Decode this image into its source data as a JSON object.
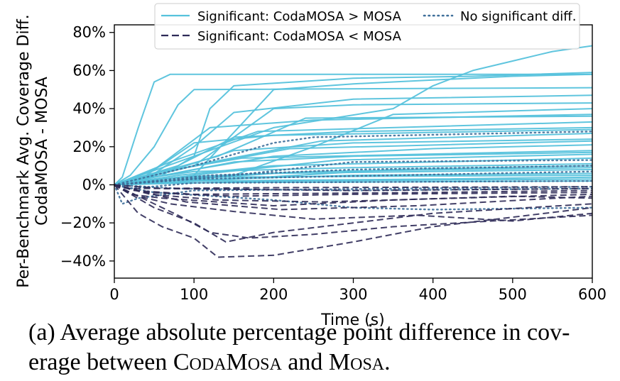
{
  "chart_data": {
    "type": "line",
    "xlabel": "Time (s)",
    "ylabel_line1": "Per-Benchmark Avg. Coverage Diff.",
    "ylabel_line2": "CodaMOSA - MOSA",
    "xlim": [
      0,
      600
    ],
    "ylim": [
      -49,
      84
    ],
    "xticks": [
      0,
      100,
      200,
      300,
      400,
      500,
      600
    ],
    "xtick_labels": [
      "0",
      "100",
      "200",
      "300",
      "400",
      "500",
      "600"
    ],
    "yticks": [
      -40,
      -20,
      0,
      20,
      40,
      60,
      80
    ],
    "ytick_labels": [
      "−40%",
      "−20%",
      "0%",
      "20%",
      "40%",
      "60%",
      "80%"
    ],
    "grid": false,
    "legend_position": "top-right",
    "legend": [
      {
        "label": "Significant: CodaMOSA > MOSA",
        "style": "solid",
        "color": "#56c2dc"
      },
      {
        "label": "No significant diff.",
        "style": "dotted",
        "color": "#3e6f9a"
      },
      {
        "label": "Significant: CodaMOSA < MOSA",
        "style": "dashed",
        "color": "#2e2a57"
      }
    ],
    "series": [
      {
        "group": "greater",
        "points": [
          [
            0,
            0
          ],
          [
            10,
            4
          ],
          [
            30,
            30
          ],
          [
            50,
            54
          ],
          [
            70,
            58
          ],
          [
            600,
            58
          ]
        ]
      },
      {
        "group": "greater",
        "points": [
          [
            0,
            0
          ],
          [
            20,
            5
          ],
          [
            50,
            20
          ],
          [
            80,
            42
          ],
          [
            100,
            50
          ],
          [
            600,
            51
          ]
        ]
      },
      {
        "group": "greater",
        "points": [
          [
            0,
            0
          ],
          [
            60,
            5
          ],
          [
            100,
            15
          ],
          [
            120,
            40
          ],
          [
            150,
            52
          ],
          [
            300,
            56
          ],
          [
            450,
            57
          ],
          [
            600,
            59
          ]
        ]
      },
      {
        "group": "greater",
        "points": [
          [
            0,
            0
          ],
          [
            40,
            3
          ],
          [
            100,
            20
          ],
          [
            150,
            38
          ],
          [
            300,
            45
          ],
          [
            600,
            47
          ]
        ]
      },
      {
        "group": "greater",
        "points": [
          [
            0,
            0
          ],
          [
            100,
            5
          ],
          [
            200,
            50
          ],
          [
            300,
            53
          ],
          [
            400,
            55
          ],
          [
            500,
            57
          ],
          [
            600,
            58
          ]
        ]
      },
      {
        "group": "greater",
        "points": [
          [
            0,
            0
          ],
          [
            100,
            10
          ],
          [
            200,
            40
          ],
          [
            300,
            42
          ],
          [
            600,
            43
          ]
        ]
      },
      {
        "group": "greater",
        "points": [
          [
            0,
            0
          ],
          [
            150,
            5
          ],
          [
            250,
            20
          ],
          [
            350,
            37
          ],
          [
            600,
            40
          ]
        ]
      },
      {
        "group": "greater",
        "points": [
          [
            0,
            0
          ],
          [
            50,
            8
          ],
          [
            120,
            30
          ],
          [
            250,
            34
          ],
          [
            600,
            37
          ]
        ]
      },
      {
        "group": "greater",
        "points": [
          [
            0,
            0
          ],
          [
            80,
            10
          ],
          [
            150,
            25
          ],
          [
            300,
            28
          ],
          [
            600,
            30
          ]
        ]
      },
      {
        "group": "greater",
        "points": [
          [
            0,
            0
          ],
          [
            40,
            5
          ],
          [
            100,
            22
          ],
          [
            200,
            26
          ],
          [
            600,
            29
          ]
        ]
      },
      {
        "group": "greater",
        "points": [
          [
            0,
            0
          ],
          [
            60,
            6
          ],
          [
            150,
            18
          ],
          [
            300,
            22
          ],
          [
            600,
            24
          ]
        ]
      },
      {
        "group": "greater",
        "points": [
          [
            0,
            0
          ],
          [
            100,
            8
          ],
          [
            200,
            15
          ],
          [
            400,
            19
          ],
          [
            600,
            21
          ]
        ]
      },
      {
        "group": "greater",
        "points": [
          [
            0,
            0
          ],
          [
            50,
            4
          ],
          [
            150,
            12
          ],
          [
            300,
            15
          ],
          [
            600,
            17
          ]
        ]
      },
      {
        "group": "greater",
        "points": [
          [
            0,
            0
          ],
          [
            80,
            5
          ],
          [
            200,
            10
          ],
          [
            400,
            12
          ],
          [
            600,
            14
          ]
        ]
      },
      {
        "group": "greater",
        "points": [
          [
            0,
            0
          ],
          [
            30,
            3
          ],
          [
            100,
            7
          ],
          [
            300,
            9
          ],
          [
            600,
            11
          ]
        ]
      },
      {
        "group": "greater",
        "points": [
          [
            0,
            0
          ],
          [
            60,
            2
          ],
          [
            200,
            6
          ],
          [
            600,
            8
          ]
        ]
      },
      {
        "group": "greater",
        "points": [
          [
            0,
            0
          ],
          [
            50,
            2
          ],
          [
            300,
            5
          ],
          [
            600,
            6
          ]
        ]
      },
      {
        "group": "greater",
        "points": [
          [
            0,
            0
          ],
          [
            100,
            2
          ],
          [
            400,
            3
          ],
          [
            600,
            4
          ]
        ]
      },
      {
        "group": "greater",
        "points": [
          [
            0,
            0
          ],
          [
            200,
            2
          ],
          [
            600,
            3
          ]
        ]
      },
      {
        "group": "greater",
        "points": [
          [
            0,
            0
          ],
          [
            40,
            1
          ],
          [
            600,
            2
          ]
        ]
      },
      {
        "group": "greater",
        "points": [
          [
            0,
            0
          ],
          [
            150,
            3
          ],
          [
            350,
            8
          ],
          [
            600,
            10
          ]
        ]
      },
      {
        "group": "greater",
        "points": [
          [
            0,
            0
          ],
          [
            120,
            6
          ],
          [
            280,
            13
          ],
          [
            600,
            16
          ]
        ]
      },
      {
        "group": "greater",
        "points": [
          [
            0,
            0
          ],
          [
            90,
            9
          ],
          [
            220,
            19
          ],
          [
            600,
            23
          ]
        ]
      },
      {
        "group": "greater",
        "points": [
          [
            0,
            0
          ],
          [
            70,
            12
          ],
          [
            180,
            28
          ],
          [
            600,
            33
          ]
        ]
      },
      {
        "group": "greater",
        "points": [
          [
            0,
            0
          ],
          [
            130,
            15
          ],
          [
            240,
            35
          ],
          [
            600,
            36
          ]
        ]
      },
      {
        "group": "greater",
        "points": [
          [
            0,
            0
          ],
          [
            200,
            30
          ],
          [
            350,
            40
          ],
          [
            400,
            52
          ],
          [
            450,
            60
          ],
          [
            500,
            65
          ],
          [
            550,
            70
          ],
          [
            600,
            73
          ]
        ]
      },
      {
        "group": "greater",
        "points": [
          [
            0,
            0
          ],
          [
            25,
            2
          ],
          [
            100,
            4
          ],
          [
            600,
            5
          ]
        ]
      },
      {
        "group": "greater",
        "points": [
          [
            0,
            0
          ],
          [
            80,
            4
          ],
          [
            250,
            7
          ],
          [
            600,
            9
          ]
        ]
      },
      {
        "group": "greater",
        "points": [
          [
            0,
            0
          ],
          [
            60,
            7
          ],
          [
            160,
            14
          ],
          [
            600,
            18
          ]
        ]
      },
      {
        "group": "greater",
        "points": [
          [
            0,
            0
          ],
          [
            110,
            11
          ],
          [
            260,
            23
          ],
          [
            600,
            27
          ]
        ]
      },
      {
        "group": "none",
        "points": [
          [
            0,
            0
          ],
          [
            100,
            10
          ],
          [
            200,
            22
          ],
          [
            250,
            25
          ],
          [
            600,
            28
          ]
        ]
      },
      {
        "group": "none",
        "points": [
          [
            0,
            0
          ],
          [
            150,
            5
          ],
          [
            300,
            12
          ],
          [
            600,
            13
          ]
        ]
      },
      {
        "group": "none",
        "points": [
          [
            0,
            0
          ],
          [
            100,
            3
          ],
          [
            600,
            7
          ]
        ]
      },
      {
        "group": "none",
        "points": [
          [
            0,
            0
          ],
          [
            20,
            -2
          ],
          [
            100,
            1
          ],
          [
            600,
            2
          ]
        ]
      },
      {
        "group": "none",
        "points": [
          [
            0,
            0
          ],
          [
            50,
            -4
          ],
          [
            200,
            -8
          ],
          [
            300,
            -12
          ],
          [
            400,
            -13
          ],
          [
            600,
            -12
          ]
        ]
      },
      {
        "group": "none",
        "points": [
          [
            0,
            0
          ],
          [
            10,
            -10
          ],
          [
            30,
            -7
          ],
          [
            100,
            -3
          ],
          [
            600,
            -1
          ]
        ]
      },
      {
        "group": "none",
        "points": [
          [
            0,
            0
          ],
          [
            120,
            5
          ],
          [
            300,
            8
          ],
          [
            600,
            10
          ]
        ]
      },
      {
        "group": "none",
        "points": [
          [
            0,
            0
          ],
          [
            80,
            -2
          ],
          [
            300,
            -3
          ],
          [
            600,
            -2
          ]
        ]
      },
      {
        "group": "less",
        "points": [
          [
            0,
            0
          ],
          [
            30,
            -15
          ],
          [
            60,
            -22
          ],
          [
            100,
            -28
          ],
          [
            130,
            -38
          ],
          [
            200,
            -37
          ],
          [
            300,
            -30
          ],
          [
            400,
            -22
          ],
          [
            600,
            -12
          ]
        ]
      },
      {
        "group": "less",
        "points": [
          [
            0,
            0
          ],
          [
            50,
            -12
          ],
          [
            100,
            -20
          ],
          [
            140,
            -30
          ],
          [
            200,
            -25
          ],
          [
            300,
            -20
          ],
          [
            400,
            -15
          ],
          [
            600,
            -10
          ]
        ]
      },
      {
        "group": "less",
        "points": [
          [
            0,
            0
          ],
          [
            40,
            -8
          ],
          [
            80,
            -16
          ],
          [
            120,
            -25
          ],
          [
            170,
            -28
          ],
          [
            250,
            -26
          ],
          [
            350,
            -22
          ],
          [
            600,
            -16
          ]
        ]
      },
      {
        "group": "less",
        "points": [
          [
            0,
            0
          ],
          [
            30,
            -6
          ],
          [
            70,
            -10
          ],
          [
            150,
            -14
          ],
          [
            250,
            -18
          ],
          [
            380,
            -16
          ],
          [
            500,
            -19
          ],
          [
            600,
            -15
          ]
        ]
      },
      {
        "group": "less",
        "points": [
          [
            0,
            0
          ],
          [
            20,
            -5
          ],
          [
            60,
            -7
          ],
          [
            200,
            -11
          ],
          [
            350,
            -8
          ],
          [
            500,
            -6
          ],
          [
            600,
            -7
          ]
        ]
      },
      {
        "group": "less",
        "points": [
          [
            0,
            0
          ],
          [
            40,
            -4
          ],
          [
            150,
            -6
          ],
          [
            300,
            -5
          ],
          [
            600,
            -4
          ]
        ]
      },
      {
        "group": "less",
        "points": [
          [
            0,
            0
          ],
          [
            25,
            -3
          ],
          [
            100,
            -5
          ],
          [
            400,
            -4
          ],
          [
            600,
            -3
          ]
        ]
      },
      {
        "group": "less",
        "points": [
          [
            0,
            0
          ],
          [
            60,
            -2
          ],
          [
            300,
            -3
          ],
          [
            600,
            -2
          ]
        ]
      },
      {
        "group": "less",
        "points": [
          [
            0,
            0
          ],
          [
            20,
            -2
          ],
          [
            200,
            -1.5
          ],
          [
            600,
            -1
          ]
        ]
      },
      {
        "group": "less",
        "points": [
          [
            0,
            0
          ],
          [
            90,
            -9
          ],
          [
            210,
            -13
          ],
          [
            380,
            -11
          ],
          [
            600,
            -6
          ]
        ]
      },
      {
        "group": "less",
        "points": [
          [
            0,
            0
          ],
          [
            45,
            -5
          ],
          [
            130,
            -8
          ],
          [
            260,
            -9
          ],
          [
            600,
            -5
          ]
        ]
      }
    ]
  },
  "caption": {
    "p1": "(a) Average absolute percentage point difference in cov-",
    "p2": "erage between ",
    "sc1": "CodaMosa",
    "p3": " and ",
    "sc2": "Mosa",
    "p4": "."
  }
}
